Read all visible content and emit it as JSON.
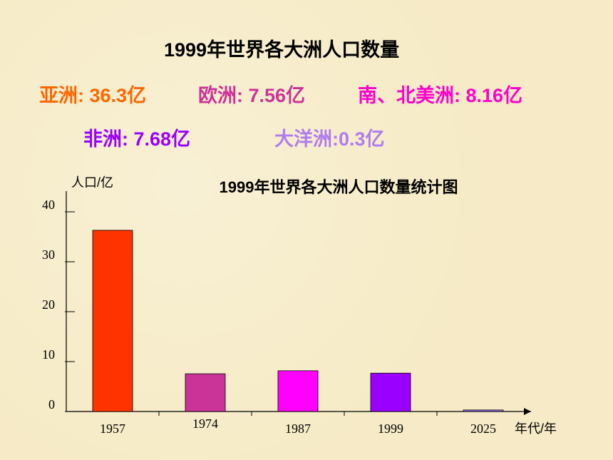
{
  "header": {
    "title": "1999年世界各大洲人口数量",
    "stats": [
      "亚洲: 36.3亿",
      "欧洲: 7.56亿",
      "南、北美洲: 8.16亿",
      "非洲: 7.68亿",
      "大洋洲:0.3亿"
    ]
  },
  "chart_data": {
    "type": "bar",
    "title": "1999年世界各大洲人口数量统计图",
    "y_label": "人口/亿",
    "x_label": "年代/年",
    "categories": [
      "1957",
      "1974",
      "1987",
      "1999",
      "2025"
    ],
    "values": [
      36.3,
      7.56,
      8.16,
      7.68,
      0.3
    ],
    "colors": [
      "#ff3300",
      "#cc3399",
      "#ff00ff",
      "#9900ff",
      "#9966ff"
    ],
    "ylim": [
      0,
      40
    ],
    "yticks": [
      0,
      10,
      20,
      30,
      40
    ],
    "grid": false
  }
}
